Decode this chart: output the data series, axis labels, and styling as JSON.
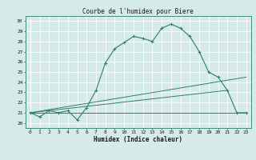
{
  "title": "Courbe de l'humidex pour Biere",
  "xlabel": "Humidex (Indice chaleur)",
  "bg_color": "#d6eaea",
  "grid_color": "#ffffff",
  "line_color": "#2e7d6e",
  "xlim": [
    -0.5,
    23.5
  ],
  "ylim": [
    19.5,
    30.5
  ],
  "xticks": [
    0,
    1,
    2,
    3,
    4,
    5,
    6,
    7,
    8,
    9,
    10,
    11,
    12,
    13,
    14,
    15,
    16,
    17,
    18,
    19,
    20,
    21,
    22,
    23
  ],
  "yticks": [
    20,
    21,
    22,
    23,
    24,
    25,
    26,
    27,
    28,
    29,
    30
  ],
  "series": [
    {
      "x": [
        0,
        1,
        2,
        3,
        4,
        5,
        6,
        7,
        8,
        9,
        10,
        11,
        12,
        13,
        14,
        15,
        16,
        17,
        18,
        19,
        20,
        21,
        22,
        23
      ],
      "y": [
        21.0,
        20.6,
        21.2,
        21.0,
        21.2,
        20.3,
        21.5,
        23.2,
        25.9,
        27.3,
        27.9,
        28.5,
        28.3,
        28.0,
        29.3,
        29.7,
        29.3,
        28.5,
        27.0,
        25.0,
        24.5,
        23.2,
        21.0,
        21.0
      ]
    },
    {
      "x": [
        0,
        23
      ],
      "y": [
        21.0,
        21.0
      ]
    },
    {
      "x": [
        0,
        23
      ],
      "y": [
        21.0,
        24.5
      ]
    },
    {
      "x": [
        0,
        21
      ],
      "y": [
        21.0,
        23.2
      ]
    }
  ]
}
